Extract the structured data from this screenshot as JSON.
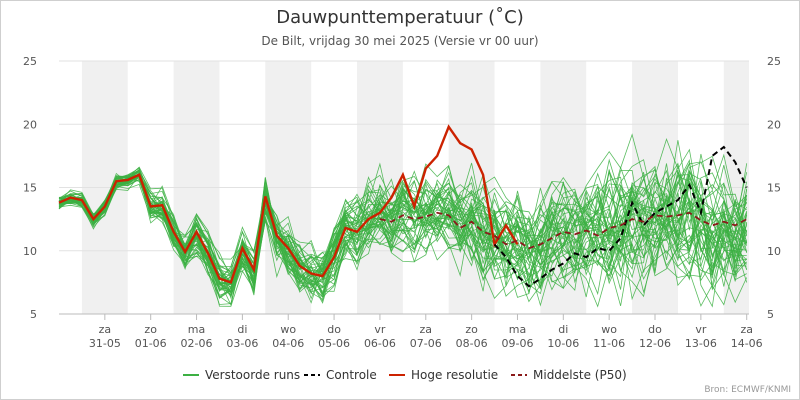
{
  "chart_data": {
    "type": "line",
    "title": "Dauwpunttemperatuur (˚C)",
    "subtitle": "De Bilt, vrijdag 30 mei 2025 (Versie vr 00 uur)",
    "credit": "Bron: ECMWF/KNMI",
    "ylim": [
      5,
      25
    ],
    "yticks": [
      5,
      10,
      15,
      20,
      25
    ],
    "xlim": [
      0,
      15.05
    ],
    "x_tick_labels": [
      {
        "x": 1,
        "day": "za",
        "date": "31-05"
      },
      {
        "x": 2,
        "day": "zo",
        "date": "01-06"
      },
      {
        "x": 3,
        "day": "ma",
        "date": "02-06"
      },
      {
        "x": 4,
        "day": "di",
        "date": "03-06"
      },
      {
        "x": 5,
        "day": "wo",
        "date": "04-06"
      },
      {
        "x": 6,
        "day": "do",
        "date": "05-06"
      },
      {
        "x": 7,
        "day": "vr",
        "date": "06-06"
      },
      {
        "x": 8,
        "day": "za",
        "date": "07-06"
      },
      {
        "x": 9,
        "day": "zo",
        "date": "08-06"
      },
      {
        "x": 10,
        "day": "ma",
        "date": "09-06"
      },
      {
        "x": 11,
        "day": "di",
        "date": "10-06"
      },
      {
        "x": 12,
        "day": "wo",
        "date": "11-06"
      },
      {
        "x": 13,
        "day": "do",
        "date": "12-06"
      },
      {
        "x": 14,
        "day": "vr",
        "date": "13-06"
      },
      {
        "x": 15,
        "day": "za",
        "date": "14-06"
      }
    ],
    "weekend_bands": [
      [
        0.5,
        1.5
      ],
      [
        2.5,
        3.5
      ],
      [
        4.5,
        5.5
      ],
      [
        6.5,
        7.5
      ],
      [
        8.5,
        9.5
      ],
      [
        10.5,
        11.5
      ],
      [
        12.5,
        13.5
      ],
      [
        14.5,
        15.05
      ]
    ],
    "legend": [
      {
        "label": "Verstoorde runs",
        "color": "#3cb043",
        "style": "solid"
      },
      {
        "label": "Controle",
        "color": "#000000",
        "style": "dashed"
      },
      {
        "label": "Hoge resolutie",
        "color": "#cc2200",
        "style": "solid"
      },
      {
        "label": "Middelste (P50)",
        "color": "#8b1a1a",
        "style": "dashed"
      }
    ],
    "series": [
      {
        "name": "Hoge resolutie",
        "x": [
          0,
          0.25,
          0.5,
          0.75,
          1,
          1.25,
          1.5,
          1.75,
          2,
          2.25,
          2.5,
          2.75,
          3,
          3.25,
          3.5,
          3.75,
          4,
          4.25,
          4.5,
          4.75,
          5,
          5.25,
          5.5,
          5.75,
          6,
          6.25,
          6.5,
          6.75,
          7,
          7.25,
          7.5,
          7.75,
          8,
          8.25,
          8.5,
          8.75,
          9,
          9.25,
          9.5,
          9.75,
          10
        ],
        "values": [
          13.8,
          14.2,
          14.0,
          12.5,
          13.5,
          15.5,
          15.6,
          16.0,
          13.5,
          13.6,
          11.5,
          9.9,
          11.5,
          9.8,
          7.8,
          7.5,
          10.2,
          8.5,
          14.3,
          11.2,
          10.2,
          8.8,
          8.2,
          8.0,
          9.5,
          11.8,
          11.5,
          12.5,
          13.0,
          14.2,
          16.0,
          13.5,
          16.5,
          17.5,
          19.8,
          18.5,
          18.0,
          16.0,
          10.5,
          12.0,
          10.5
        ]
      },
      {
        "name": "Controle",
        "x": [
          9.5,
          9.75,
          10,
          10.25,
          10.5,
          10.75,
          11,
          11.25,
          11.5,
          11.75,
          12,
          12.25,
          12.5,
          12.75,
          13,
          13.25,
          13.5,
          13.75,
          14,
          14.25,
          14.5,
          14.75,
          15
        ],
        "values": [
          10.5,
          9.5,
          8.0,
          7.2,
          7.8,
          8.5,
          9.0,
          9.8,
          9.5,
          10.2,
          10.0,
          11.0,
          13.8,
          12.0,
          13.0,
          13.5,
          14.0,
          15.2,
          13.0,
          17.5,
          18.2,
          17.0,
          15.0
        ]
      },
      {
        "name": "Middelste (P50)",
        "x": [
          7,
          7.25,
          7.5,
          7.75,
          8,
          8.25,
          8.5,
          8.75,
          9,
          9.25,
          9.5,
          9.75,
          10,
          10.25,
          10.5,
          10.75,
          11,
          11.25,
          11.5,
          11.75,
          12,
          12.25,
          12.5,
          12.75,
          13,
          13.25,
          13.5,
          13.75,
          14,
          14.25,
          14.5,
          14.75,
          15
        ],
        "values": [
          12.5,
          12.3,
          12.8,
          12.5,
          12.7,
          13.0,
          12.8,
          11.8,
          12.3,
          11.5,
          11.2,
          10.5,
          10.8,
          10.2,
          10.5,
          11.0,
          11.5,
          11.3,
          11.6,
          11.2,
          11.8,
          12.0,
          12.5,
          12.3,
          12.8,
          12.7,
          12.8,
          13.0,
          12.4,
          12.0,
          12.3,
          12.0,
          12.5
        ]
      }
    ],
    "ensemble_members": 50
  }
}
